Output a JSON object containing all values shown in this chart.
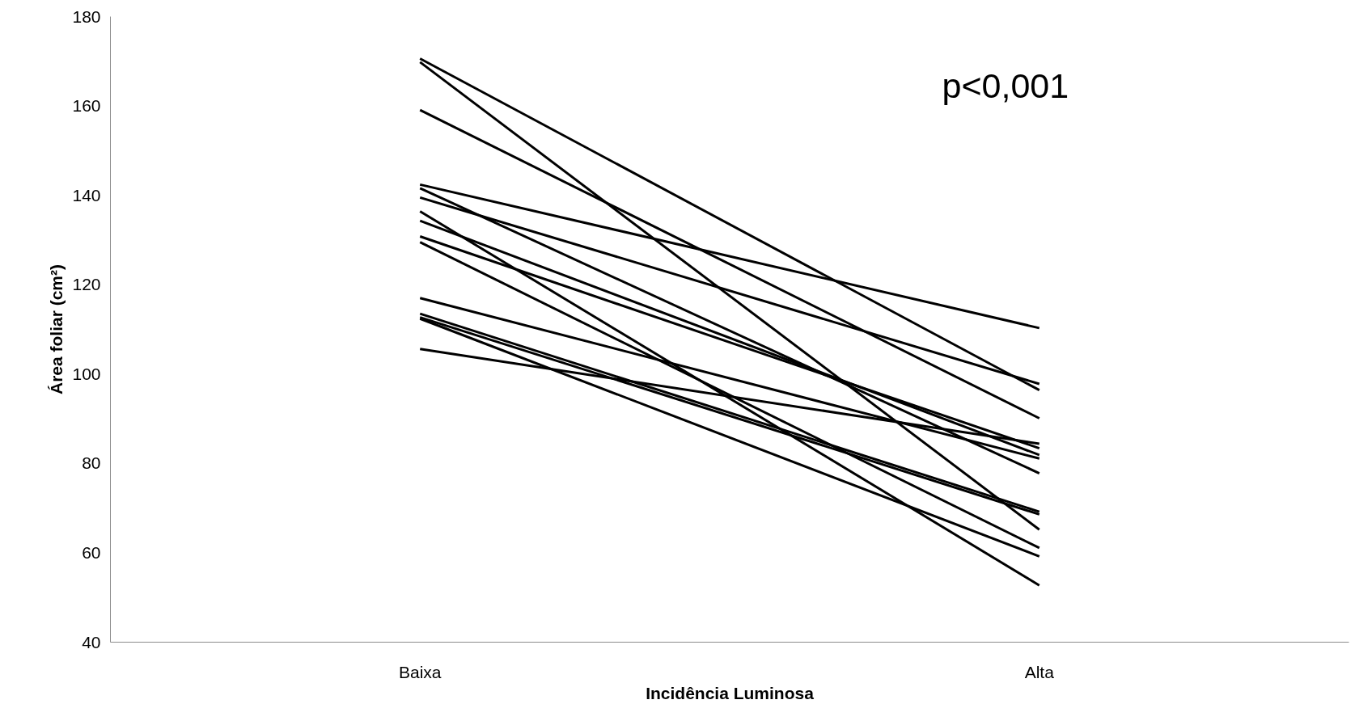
{
  "chart_data": {
    "type": "line",
    "xlabel": "Incidência Luminosa",
    "ylabel": "Área foliar (cm²)",
    "categories": [
      "Baixa",
      "Alta"
    ],
    "ylim": [
      40,
      180
    ],
    "yticks": [
      40,
      60,
      80,
      100,
      120,
      140,
      160,
      180
    ],
    "grid": false,
    "marker": "none",
    "line_style": "solid",
    "annotations": [
      "p<0,001"
    ],
    "series": [
      {
        "color": "#000000",
        "values": [
          170.6,
          96.4
        ]
      },
      {
        "color": "#000000",
        "values": [
          169.8,
          65.2
        ]
      },
      {
        "color": "#000000",
        "values": [
          159.1,
          90.1
        ]
      },
      {
        "color": "#000000",
        "values": [
          142.4,
          110.3
        ]
      },
      {
        "color": "#000000",
        "values": [
          141.6,
          77.8
        ]
      },
      {
        "color": "#000000",
        "values": [
          139.5,
          97.8
        ]
      },
      {
        "color": "#000000",
        "values": [
          136.4,
          52.7
        ]
      },
      {
        "color": "#000000",
        "values": [
          134.3,
          81.9
        ]
      },
      {
        "color": "#000000",
        "values": [
          130.8,
          83.4
        ]
      },
      {
        "color": "#000000",
        "values": [
          129.5,
          61.1
        ]
      },
      {
        "color": "#000000",
        "values": [
          117.0,
          81.1
        ]
      },
      {
        "color": "#000000",
        "values": [
          113.5,
          69.2
        ]
      },
      {
        "color": "#000000",
        "values": [
          112.7,
          68.6
        ]
      },
      {
        "color": "#000000",
        "values": [
          112.4,
          59.2
        ]
      },
      {
        "color": "#000000",
        "values": [
          105.6,
          84.4
        ]
      }
    ]
  }
}
